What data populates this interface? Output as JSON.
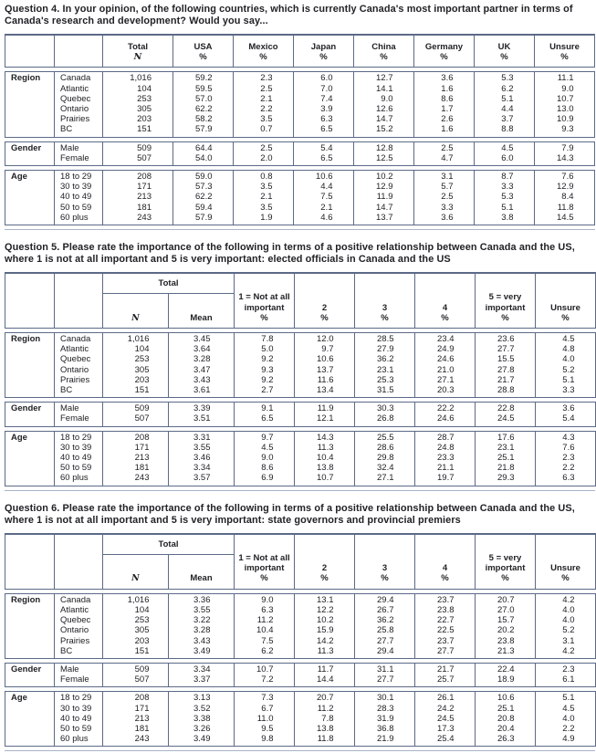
{
  "colors": {
    "table_border": "#5c6a87",
    "end_rule": "#a9b3c9",
    "text": "#212226",
    "background": "#ffffff"
  },
  "questions": [
    {
      "title": "Question 4. In your opinion, of the following countries, which is currently Canada's most important partner in terms of Canada's research and development? Would you say...",
      "table_type": "simple",
      "columns": [
        {
          "label_lines": [
            "Total"
          ],
          "sub": "N",
          "sub_italic": true
        },
        {
          "label_lines": [
            "USA"
          ],
          "sub": "%"
        },
        {
          "label_lines": [
            "Mexico"
          ],
          "sub": "%"
        },
        {
          "label_lines": [
            "Japan"
          ],
          "sub": "%"
        },
        {
          "label_lines": [
            "China"
          ],
          "sub": "%"
        },
        {
          "label_lines": [
            "Germany"
          ],
          "sub": "%"
        },
        {
          "label_lines": [
            "UK"
          ],
          "sub": "%"
        },
        {
          "label_lines": [
            "Unsure"
          ],
          "sub": "%"
        }
      ],
      "sections": [
        {
          "label": "Region",
          "rows": [
            {
              "category": "Canada",
              "values": [
                "1,016",
                "59.2",
                "2.3",
                "6.0",
                "12.7",
                "3.6",
                "5.3",
                "11.1"
              ]
            },
            {
              "category": "Atlantic",
              "values": [
                "104",
                "59.5",
                "2.5",
                "7.0",
                "14.1",
                "1.6",
                "6.2",
                "9.0"
              ]
            },
            {
              "category": "Quebec",
              "values": [
                "253",
                "57.0",
                "2.1",
                "7.4",
                "9.0",
                "8.6",
                "5.1",
                "10.7"
              ]
            },
            {
              "category": "Ontario",
              "values": [
                "305",
                "62.2",
                "2.2",
                "3.9",
                "12.6",
                "1.7",
                "4.4",
                "13.0"
              ]
            },
            {
              "category": "Prairies",
              "values": [
                "203",
                "58.2",
                "3.5",
                "6.3",
                "14.7",
                "2.6",
                "3.7",
                "10.9"
              ]
            },
            {
              "category": "BC",
              "values": [
                "151",
                "57.9",
                "0.7",
                "6.5",
                "15.2",
                "1.6",
                "8.8",
                "9.3"
              ]
            }
          ]
        },
        {
          "label": "Gender",
          "rows": [
            {
              "category": "Male",
              "values": [
                "509",
                "64.4",
                "2.5",
                "5.4",
                "12.8",
                "2.5",
                "4.5",
                "7.9"
              ]
            },
            {
              "category": "Female",
              "values": [
                "507",
                "54.0",
                "2.0",
                "6.5",
                "12.5",
                "4.7",
                "6.0",
                "14.3"
              ]
            }
          ]
        },
        {
          "label": "Age",
          "rows": [
            {
              "category": "18 to 29",
              "values": [
                "208",
                "59.0",
                "0.8",
                "10.6",
                "10.2",
                "3.1",
                "8.7",
                "7.6"
              ]
            },
            {
              "category": "30 to 39",
              "values": [
                "171",
                "57.3",
                "3.5",
                "4.4",
                "12.9",
                "5.7",
                "3.3",
                "12.9"
              ]
            },
            {
              "category": "40 to 49",
              "values": [
                "213",
                "62.2",
                "2.1",
                "7.5",
                "11.9",
                "2.5",
                "5.3",
                "8.4"
              ]
            },
            {
              "category": "50 to 59",
              "values": [
                "181",
                "59.4",
                "3.5",
                "2.1",
                "14.7",
                "3.3",
                "5.1",
                "11.8"
              ]
            },
            {
              "category": "60 plus",
              "values": [
                "243",
                "57.9",
                "1.9",
                "4.6",
                "13.7",
                "3.6",
                "3.8",
                "14.5"
              ]
            }
          ]
        }
      ]
    },
    {
      "title": "Question 5. Please rate the importance of the following in terms of a positive relationship between Canada and the US, where 1 is not at all important and 5 is very important: elected officials in Canada and the US",
      "table_type": "rating",
      "total_group": {
        "label": "Total",
        "sub_cols": [
          {
            "text": "N",
            "italic": true
          },
          {
            "text": "Mean",
            "italic": false
          }
        ]
      },
      "columns": [
        {
          "label_lines": [
            "1 = Not at all",
            "important"
          ],
          "sub": "%"
        },
        {
          "label_lines": [
            "2"
          ],
          "sub": "%"
        },
        {
          "label_lines": [
            "3"
          ],
          "sub": "%"
        },
        {
          "label_lines": [
            "4"
          ],
          "sub": "%"
        },
        {
          "label_lines": [
            "5 = very",
            "important"
          ],
          "sub": "%"
        },
        {
          "label_lines": [
            "Unsure"
          ],
          "sub": "%"
        }
      ],
      "sections": [
        {
          "label": "Region",
          "rows": [
            {
              "category": "Canada",
              "values": [
                "1,016",
                "3.45",
                "7.8",
                "12.0",
                "28.5",
                "23.4",
                "23.6",
                "4.5"
              ]
            },
            {
              "category": "Atlantic",
              "values": [
                "104",
                "3.64",
                "5.0",
                "9.7",
                "27.9",
                "24.9",
                "27.7",
                "4.8"
              ]
            },
            {
              "category": "Quebec",
              "values": [
                "253",
                "3.28",
                "9.2",
                "10.6",
                "36.2",
                "24.6",
                "15.5",
                "4.0"
              ]
            },
            {
              "category": "Ontario",
              "values": [
                "305",
                "3.47",
                "9.3",
                "13.7",
                "23.1",
                "21.0",
                "27.8",
                "5.2"
              ]
            },
            {
              "category": "Prairies",
              "values": [
                "203",
                "3.43",
                "9.2",
                "11.6",
                "25.3",
                "27.1",
                "21.7",
                "5.1"
              ]
            },
            {
              "category": "BC",
              "values": [
                "151",
                "3.61",
                "2.7",
                "13.4",
                "31.5",
                "20.3",
                "28.8",
                "3.3"
              ]
            }
          ]
        },
        {
          "label": "Gender",
          "rows": [
            {
              "category": "Male",
              "values": [
                "509",
                "3.39",
                "9.1",
                "11.9",
                "30.3",
                "22.2",
                "22.8",
                "3.6"
              ]
            },
            {
              "category": "Female",
              "values": [
                "507",
                "3.51",
                "6.5",
                "12.1",
                "26.8",
                "24.6",
                "24.5",
                "5.4"
              ]
            }
          ]
        },
        {
          "label": "Age",
          "rows": [
            {
              "category": "18 to 29",
              "values": [
                "208",
                "3.31",
                "9.7",
                "14.3",
                "25.5",
                "28.7",
                "17.6",
                "4.3"
              ]
            },
            {
              "category": "30 to 39",
              "values": [
                "171",
                "3.55",
                "4.5",
                "11.3",
                "28.6",
                "24.8",
                "23.1",
                "7.6"
              ]
            },
            {
              "category": "40 to 49",
              "values": [
                "213",
                "3.46",
                "9.0",
                "10.4",
                "29.8",
                "23.3",
                "25.1",
                "2.3"
              ]
            },
            {
              "category": "50 to 59",
              "values": [
                "181",
                "3.34",
                "8.6",
                "13.8",
                "32.4",
                "21.1",
                "21.8",
                "2.2"
              ]
            },
            {
              "category": "60 plus",
              "values": [
                "243",
                "3.57",
                "6.9",
                "10.7",
                "27.1",
                "19.7",
                "29.3",
                "6.3"
              ]
            }
          ]
        }
      ]
    },
    {
      "title": "Question 6. Please rate the importance of the following in terms of a positive relationship between Canada and the US, where 1 is not at all important and 5 is very important: state governors and provincial premiers",
      "table_type": "rating",
      "total_group": {
        "label": "Total",
        "sub_cols": [
          {
            "text": "N",
            "italic": true
          },
          {
            "text": "Mean",
            "italic": false
          }
        ]
      },
      "columns": [
        {
          "label_lines": [
            "1 = Not at all",
            "important"
          ],
          "sub": "%"
        },
        {
          "label_lines": [
            "2"
          ],
          "sub": "%"
        },
        {
          "label_lines": [
            "3"
          ],
          "sub": "%"
        },
        {
          "label_lines": [
            "4"
          ],
          "sub": "%"
        },
        {
          "label_lines": [
            "5 = very",
            "important"
          ],
          "sub": "%"
        },
        {
          "label_lines": [
            "Unsure"
          ],
          "sub": "%"
        }
      ],
      "sections": [
        {
          "label": "Region",
          "rows": [
            {
              "category": "Canada",
              "values": [
                "1,016",
                "3.36",
                "9.0",
                "13.1",
                "29.4",
                "23.7",
                "20.7",
                "4.2"
              ]
            },
            {
              "category": "Atlantic",
              "values": [
                "104",
                "3.55",
                "6.3",
                "12.2",
                "26.7",
                "23.8",
                "27.0",
                "4.0"
              ]
            },
            {
              "category": "Quebec",
              "values": [
                "253",
                "3.22",
                "11.2",
                "10.2",
                "36.2",
                "22.7",
                "15.7",
                "4.0"
              ]
            },
            {
              "category": "Ontario",
              "values": [
                "305",
                "3.28",
                "10.4",
                "15.9",
                "25.8",
                "22.5",
                "20.2",
                "5.2"
              ]
            },
            {
              "category": "Prairies",
              "values": [
                "203",
                "3.43",
                "7.5",
                "14.2",
                "27.7",
                "23.7",
                "23.8",
                "3.1"
              ]
            },
            {
              "category": "BC",
              "values": [
                "151",
                "3.49",
                "6.2",
                "11.3",
                "29.4",
                "27.7",
                "21.3",
                "4.2"
              ]
            }
          ]
        },
        {
          "label": "Gender",
          "rows": [
            {
              "category": "Male",
              "values": [
                "509",
                "3.34",
                "10.7",
                "11.7",
                "31.1",
                "21.7",
                "22.4",
                "2.3"
              ]
            },
            {
              "category": "Female",
              "values": [
                "507",
                "3.37",
                "7.2",
                "14.4",
                "27.7",
                "25.7",
                "18.9",
                "6.1"
              ]
            }
          ]
        },
        {
          "label": "Age",
          "rows": [
            {
              "category": "18 to 29",
              "values": [
                "208",
                "3.13",
                "7.3",
                "20.7",
                "30.1",
                "26.1",
                "10.6",
                "5.1"
              ]
            },
            {
              "category": "30 to 39",
              "values": [
                "171",
                "3.52",
                "6.7",
                "11.2",
                "28.3",
                "24.2",
                "25.1",
                "4.5"
              ]
            },
            {
              "category": "40 to 49",
              "values": [
                "213",
                "3.38",
                "11.0",
                "7.8",
                "31.9",
                "24.5",
                "20.8",
                "4.0"
              ]
            },
            {
              "category": "50 to 59",
              "values": [
                "181",
                "3.26",
                "9.5",
                "13.8",
                "36.8",
                "17.3",
                "20.4",
                "2.2"
              ]
            },
            {
              "category": "60 plus",
              "values": [
                "243",
                "3.49",
                "9.8",
                "11.8",
                "21.9",
                "25.4",
                "26.3",
                "4.9"
              ]
            }
          ]
        }
      ]
    }
  ]
}
